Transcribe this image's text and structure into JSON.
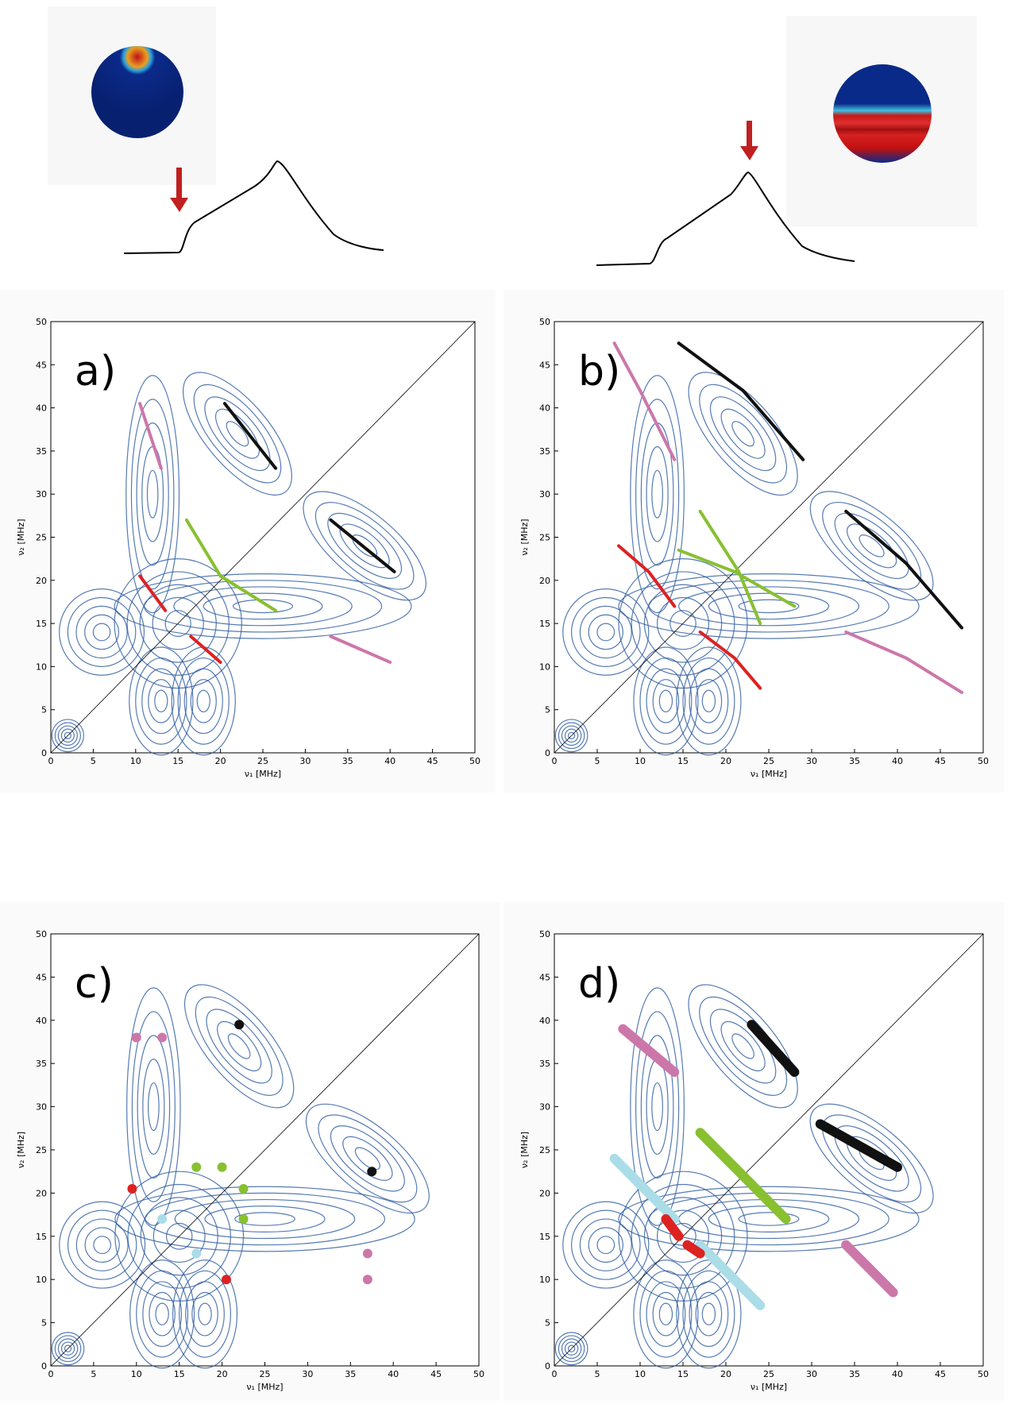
{
  "chart_data": [
    {
      "type": "line",
      "panel_label": "a)",
      "x_label": "ν₁ [MHz]",
      "y_label": "ν₂ [MHz]",
      "xlim": [
        0,
        50
      ],
      "ylim": [
        0,
        50
      ],
      "xticks": [
        0,
        5,
        10,
        15,
        20,
        25,
        30,
        35,
        40,
        45,
        50
      ],
      "yticks": [
        0,
        5,
        10,
        15,
        20,
        25,
        30,
        35,
        40,
        45,
        50
      ],
      "line_width": 4,
      "series": [
        {
          "color": "#cc77aa",
          "x": [
            10.5,
            13
          ],
          "values": [
            40.5,
            33
          ]
        },
        {
          "color": "#cc77aa",
          "x": [
            33,
            40
          ],
          "values": [
            13.5,
            10.5
          ]
        },
        {
          "color": "#dd2222",
          "x": [
            10.5,
            13.5
          ],
          "values": [
            20.5,
            16.5
          ]
        },
        {
          "color": "#dd2222",
          "x": [
            16.5,
            20
          ],
          "values": [
            13.5,
            10.5
          ]
        },
        {
          "color": "#88c030",
          "x": [
            16,
            20,
            26.5
          ],
          "values": [
            27,
            20.5,
            16.5
          ]
        },
        {
          "color": "#111111",
          "x": [
            20.5,
            26.5
          ],
          "values": [
            40.5,
            33
          ]
        },
        {
          "color": "#111111",
          "x": [
            33,
            40.5
          ],
          "values": [
            27,
            21
          ]
        }
      ]
    },
    {
      "type": "line",
      "panel_label": "b)",
      "x_label": "ν₁ [MHz]",
      "y_label": "ν₂ [MHz]",
      "xlim": [
        0,
        50
      ],
      "ylim": [
        0,
        50
      ],
      "xticks": [
        0,
        5,
        10,
        15,
        20,
        25,
        30,
        35,
        40,
        45,
        50
      ],
      "yticks": [
        0,
        5,
        10,
        15,
        20,
        25,
        30,
        35,
        40,
        45,
        50
      ],
      "line_width": 4,
      "series": [
        {
          "color": "#cc77aa",
          "x": [
            7,
            10,
            14
          ],
          "values": [
            47.5,
            42,
            34
          ]
        },
        {
          "color": "#cc77aa",
          "x": [
            34,
            41,
            47.5
          ],
          "values": [
            14,
            11,
            7
          ]
        },
        {
          "color": "#dd2222",
          "x": [
            7.5,
            11,
            14
          ],
          "values": [
            24,
            21,
            17
          ]
        },
        {
          "color": "#dd2222",
          "x": [
            17,
            21,
            24
          ],
          "values": [
            14,
            11,
            7.5
          ]
        },
        {
          "color": "#88c030",
          "x": [
            17,
            21.5,
            24
          ],
          "values": [
            28,
            21,
            15
          ]
        },
        {
          "color": "#88c030",
          "x": [
            14.5,
            21,
            28
          ],
          "values": [
            23.5,
            21,
            17
          ]
        },
        {
          "color": "#111111",
          "x": [
            14.5,
            22,
            29
          ],
          "values": [
            47.5,
            42,
            34
          ]
        },
        {
          "color": "#111111",
          "x": [
            34,
            41,
            47.5
          ],
          "values": [
            28,
            22,
            14.5
          ]
        }
      ]
    },
    {
      "type": "scatter",
      "panel_label": "c)",
      "x_label": "ν₁ [MHz]",
      "y_label": "ν₂ [MHz]",
      "xlim": [
        0,
        50
      ],
      "ylim": [
        0,
        50
      ],
      "xticks": [
        0,
        5,
        10,
        15,
        20,
        25,
        30,
        35,
        40,
        45,
        50
      ],
      "yticks": [
        0,
        5,
        10,
        15,
        20,
        25,
        30,
        35,
        40,
        45,
        50
      ],
      "line_width": 4,
      "series": [
        {
          "color": "#cc77aa",
          "x": [
            10,
            13,
            37,
            37
          ],
          "values": [
            38,
            38,
            13,
            10
          ]
        },
        {
          "color": "#dd2222",
          "x": [
            9.5,
            20.5
          ],
          "values": [
            20.5,
            10
          ]
        },
        {
          "color": "#88c030",
          "x": [
            17,
            20,
            22.5,
            22.5
          ],
          "values": [
            23,
            23,
            20.5,
            17
          ]
        },
        {
          "color": "#111111",
          "x": [
            22,
            37.5
          ],
          "values": [
            39.5,
            22.5
          ]
        },
        {
          "color": "#aadde8",
          "x": [
            13,
            17
          ],
          "values": [
            17,
            13
          ]
        }
      ]
    },
    {
      "type": "line",
      "panel_label": "d)",
      "x_label": "ν₁ [MHz]",
      "y_label": "ν₂ [MHz]",
      "xlim": [
        0,
        50
      ],
      "ylim": [
        0,
        50
      ],
      "xticks": [
        0,
        5,
        10,
        15,
        20,
        25,
        30,
        35,
        40,
        45,
        50
      ],
      "yticks": [
        0,
        5,
        10,
        15,
        20,
        25,
        30,
        35,
        40,
        45,
        50
      ],
      "line_width": 12,
      "series": [
        {
          "color": "#cc77aa",
          "x": [
            8,
            14
          ],
          "values": [
            39,
            34
          ]
        },
        {
          "color": "#cc77aa",
          "x": [
            34,
            39.5
          ],
          "values": [
            14,
            8.5
          ]
        },
        {
          "color": "#88c030",
          "x": [
            17,
            21,
            27
          ],
          "values": [
            27,
            23,
            17
          ]
        },
        {
          "color": "#111111",
          "x": [
            23,
            28
          ],
          "values": [
            39.5,
            34
          ]
        },
        {
          "color": "#111111",
          "x": [
            31,
            40
          ],
          "values": [
            28,
            23
          ]
        },
        {
          "color": "#aadde8",
          "x": [
            7,
            14
          ],
          "values": [
            24,
            17
          ]
        },
        {
          "color": "#aadde8",
          "x": [
            17,
            24
          ],
          "values": [
            14,
            7
          ]
        },
        {
          "color": "#dd2222",
          "x": [
            13,
            14.5
          ],
          "values": [
            17,
            15
          ]
        },
        {
          "color": "#dd2222",
          "x": [
            15.5,
            17
          ],
          "values": [
            14,
            13
          ]
        }
      ]
    }
  ]
}
